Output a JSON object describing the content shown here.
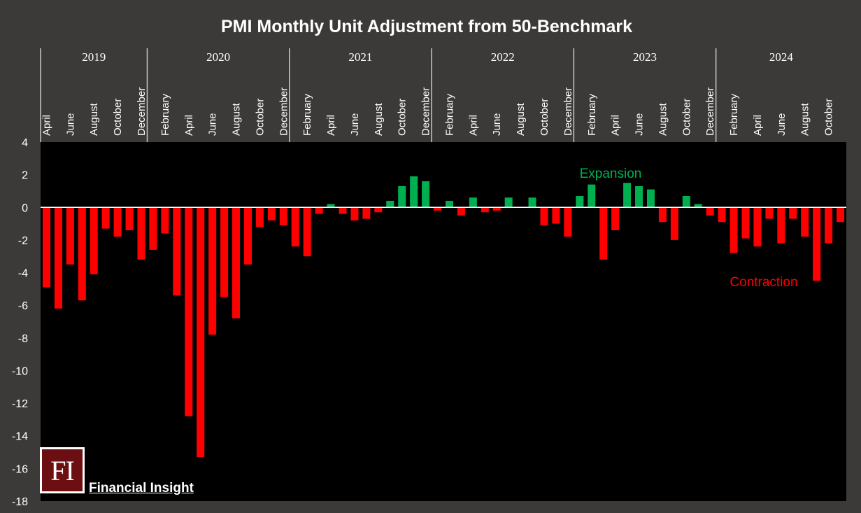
{
  "colors": {
    "background": "#3b3a38",
    "plot_background": "#000000",
    "positive": "#00b050",
    "negative": "#ff0000",
    "text": "#ffffff"
  },
  "logo": {
    "letters": "FI",
    "name": "Financial Insight"
  },
  "chart_data": {
    "type": "bar",
    "title": "PMI Monthly Unit Adjustment from 50-Benchmark",
    "xlabel": "",
    "ylabel": "",
    "ylim": [
      -18,
      4
    ],
    "yticks": [
      4,
      2,
      0,
      -2,
      -4,
      -6,
      -8,
      -10,
      -12,
      -14,
      -16,
      -18
    ],
    "grid": false,
    "legend": "none",
    "years": [
      "2019",
      "2020",
      "2021",
      "2022",
      "2023",
      "2024"
    ],
    "categories": [
      "2019-04",
      "2019-05",
      "2019-06",
      "2019-07",
      "2019-08",
      "2019-09",
      "2019-10",
      "2019-11",
      "2019-12",
      "2020-01",
      "2020-02",
      "2020-03",
      "2020-04",
      "2020-05",
      "2020-06",
      "2020-07",
      "2020-08",
      "2020-09",
      "2020-10",
      "2020-11",
      "2020-12",
      "2021-01",
      "2021-02",
      "2021-03",
      "2021-04",
      "2021-05",
      "2021-06",
      "2021-07",
      "2021-08",
      "2021-09",
      "2021-10",
      "2021-11",
      "2021-12",
      "2022-01",
      "2022-02",
      "2022-03",
      "2022-04",
      "2022-05",
      "2022-06",
      "2022-07",
      "2022-08",
      "2022-09",
      "2022-10",
      "2022-11",
      "2022-12",
      "2023-01",
      "2023-02",
      "2023-03",
      "2023-04",
      "2023-05",
      "2023-06",
      "2023-07",
      "2023-08",
      "2023-09",
      "2023-10",
      "2023-11",
      "2023-12",
      "2024-01",
      "2024-02",
      "2024-03",
      "2024-04",
      "2024-05",
      "2024-06",
      "2024-07",
      "2024-08",
      "2024-09",
      "2024-10",
      "2024-11"
    ],
    "month_labels": [
      "April",
      "",
      "June",
      "",
      "August",
      "",
      "October",
      "",
      "December",
      "",
      "February",
      "",
      "April",
      "",
      "June",
      "",
      "August",
      "",
      "October",
      "",
      "December",
      "",
      "February",
      "",
      "April",
      "",
      "June",
      "",
      "August",
      "",
      "October",
      "",
      "December",
      "",
      "February",
      "",
      "April",
      "",
      "June",
      "",
      "August",
      "",
      "October",
      "",
      "December",
      "",
      "February",
      "",
      "April",
      "",
      "June",
      "",
      "August",
      "",
      "October",
      "",
      "December",
      "",
      "February",
      "",
      "April",
      "",
      "June",
      "",
      "August",
      "",
      "October",
      ""
    ],
    "values": [
      -4.9,
      -6.2,
      -3.5,
      -5.7,
      -4.1,
      -1.3,
      -1.8,
      -1.4,
      -3.2,
      -2.6,
      -1.6,
      -5.4,
      -12.8,
      -15.3,
      -7.8,
      -5.5,
      -6.8,
      -3.5,
      -1.2,
      -0.8,
      -1.1,
      -2.4,
      -3.0,
      -0.4,
      0.2,
      -0.4,
      -0.8,
      -0.7,
      -0.3,
      0.4,
      1.3,
      1.9,
      1.6,
      -0.2,
      0.4,
      -0.5,
      0.6,
      -0.3,
      -0.2,
      0.6,
      0.0,
      0.6,
      -1.1,
      -1.0,
      -1.8,
      0.7,
      1.4,
      -3.2,
      -1.4,
      1.5,
      1.3,
      1.1,
      -0.9,
      -2.0,
      0.7,
      0.2,
      -0.5,
      -0.9,
      -2.8,
      -1.9,
      -2.4,
      -0.7,
      -2.2,
      -0.7,
      -1.8,
      -4.5,
      -2.2,
      -0.9
    ],
    "annotations": [
      {
        "text": "Expansion",
        "color": "#00b050"
      },
      {
        "text": "Contraction",
        "color": "#ff0000"
      }
    ]
  }
}
